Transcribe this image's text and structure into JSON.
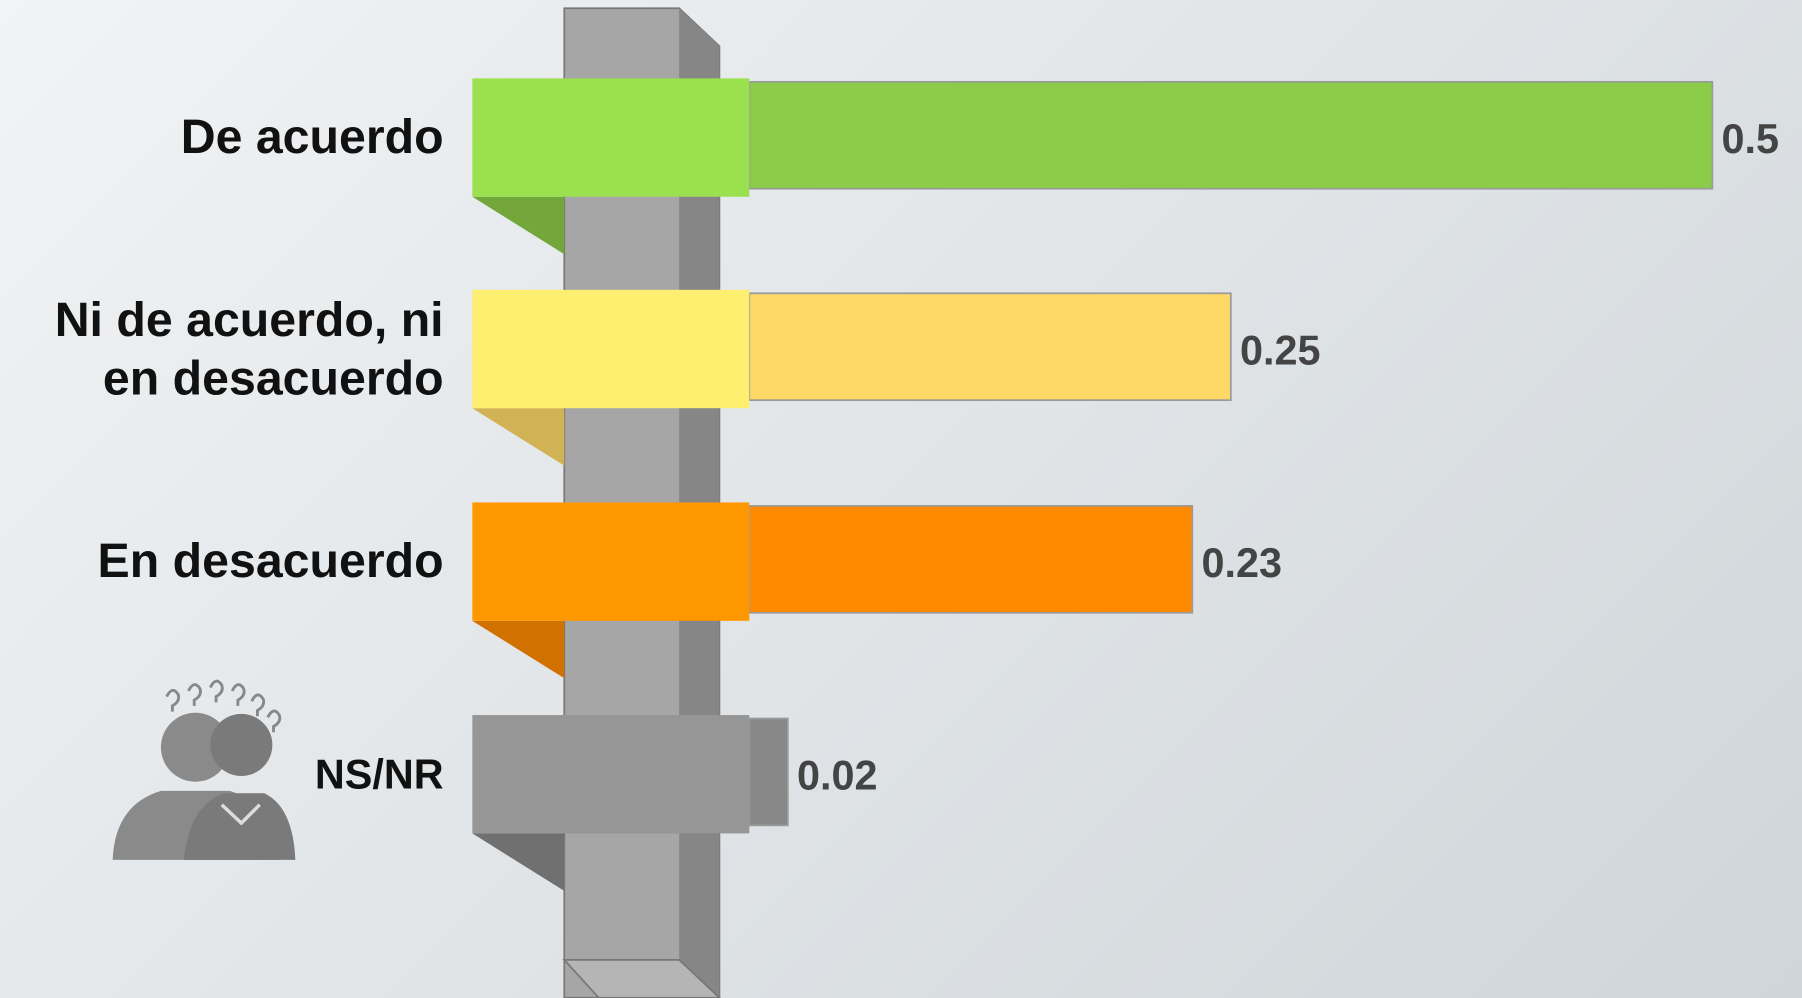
{
  "chart_data": {
    "type": "bar",
    "categories": [
      "De acuerdo",
      "Ni de acuerdo, ni en desacuerdo",
      "En desacuerdo",
      "NS/NR"
    ],
    "values": [
      0.5,
      0.25,
      0.23,
      0.02
    ],
    "colors": [
      "#8ccc48",
      "#ffd966",
      "#ff8a00",
      "#888888"
    ]
  }
}
